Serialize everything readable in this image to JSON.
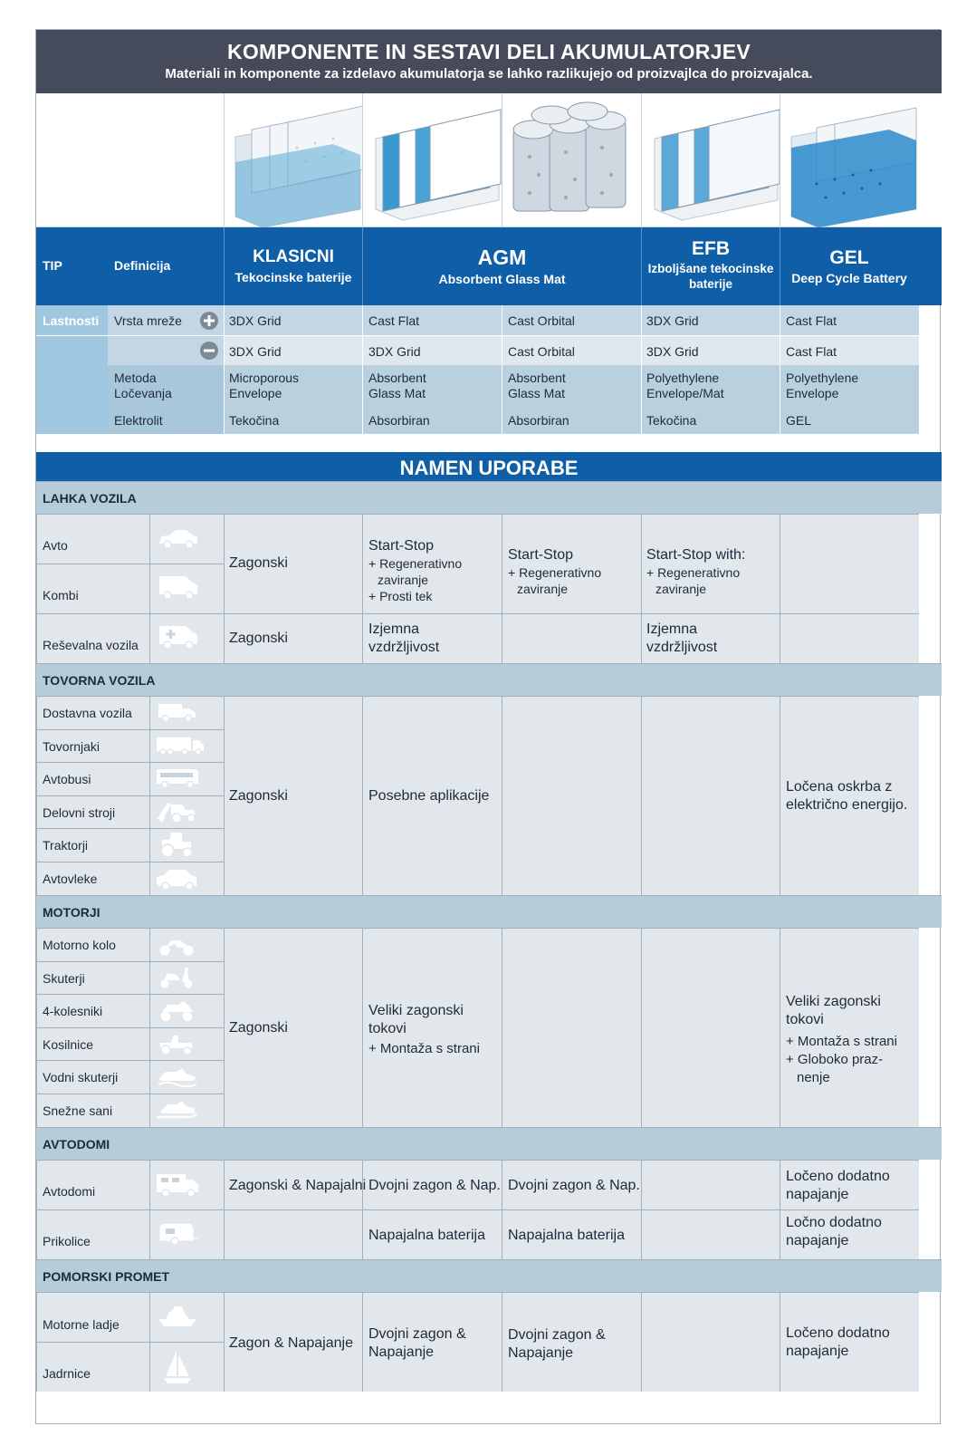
{
  "header": {
    "title": "KOMPONENTE IN SESTAVI DELI AKUMULATORJEV",
    "subtitle": "Materiali in komponente za izdelavo akumulatorja se lahko razlikujejo od proizvajlca do proizvajalca."
  },
  "types": {
    "tip": "TIP",
    "definicija": "Definicija",
    "klasicni": "KLASICNI",
    "klasicni_sub": "Tekocinske baterije",
    "agm": "AGM",
    "agm_sub": "Absorbent Glass Mat",
    "efb": "EFB",
    "efb_sub": "Izboljšane tekocinske baterije",
    "gel": "GEL",
    "gel_sub": "Deep Cycle Battery"
  },
  "props": {
    "lastnosti": "Lastnosti",
    "vrsta_mreze": "Vrsta mreže",
    "plus": [
      "3DX Grid",
      "Cast Flat",
      "Cast Orbital",
      "3DX Grid",
      "Cast Flat"
    ],
    "minus": [
      "3DX Grid",
      "3DX Grid",
      "Cast Orbital",
      "3DX Grid",
      "Cast Flat"
    ],
    "metoda": "Metoda Ločevanja",
    "metoda_vals": [
      "Microporous Envelope",
      "Absorbent Glass Mat",
      "Absorbent Glass Mat",
      "Polyethylene Envelope/Mat",
      "Polyethylene Envelope"
    ],
    "elektrolit": "Elektrolit",
    "elektrolit_vals": [
      "Tekočina",
      "Absorbiran",
      "Absorbiran",
      "Tekočina",
      "GEL"
    ]
  },
  "namen": "NAMEN UPORABE",
  "lahka": {
    "title": "LAHKA VOZILA",
    "rows": [
      "Avto",
      "Kombi",
      "Reševalna vozila"
    ],
    "zagonski": "Zagonski",
    "agm_flat_title": "Start-Stop",
    "agm_flat_l1": "+ Regenerativno",
    "agm_flat_l2": "zaviranje",
    "agm_flat_l3": "+ Prosti tek",
    "agm_orb_title": "Start-Stop",
    "agm_orb_l1": "+ Regenerativno",
    "agm_orb_l2": "zaviranje",
    "efb_title": "Start-Stop with:",
    "efb_l1": "+ Regenerativno",
    "efb_l2": "zaviranje",
    "res_zagonski": "Zagonski",
    "res_agm": "Izjemna vzdržljivost",
    "res_efb": "Izjemna vzdržljivost"
  },
  "tovorna": {
    "title": "TOVORNA VOZILA",
    "rows": [
      "Dostavna vozila",
      "Tovornjaki",
      "Avtobusi",
      "Delovni stroji",
      "Traktorji",
      "Avtovleke"
    ],
    "zagonski": "Zagonski",
    "agm": "Posebne aplikacije",
    "gel": "Ločena oskrba z električno energijo."
  },
  "motorji": {
    "title": "MOTORJI",
    "rows": [
      "Motorno kolo",
      "Skuterji",
      "4-kolesniki",
      "Kosilnice",
      "Vodni skuterji",
      "Snežne sani"
    ],
    "zagonski": "Zagonski",
    "agm_l1": "Veliki zagonski",
    "agm_l2": "tokovi",
    "agm_l3": "+ Montaža s strani",
    "gel_l1": "Veliki zagonski",
    "gel_l2": "tokovi",
    "gel_l3": "+ Montaža s strani",
    "gel_l4": "+ Globoko praz-",
    "gel_l5": "nenje"
  },
  "avtodomi": {
    "title": "AVTODOMI",
    "rows": [
      "Avtodomi",
      "Prikolice"
    ],
    "r1_klasicni": "Zagonski & Napajalni",
    "r1_agm1": "Dvojni zagon & Nap.",
    "r1_agm2": "Dvojni zagon & Nap.",
    "r1_gel": "Ločeno dodatno napajanje",
    "r2_agm1": "Napajalna baterija",
    "r2_agm2": "Napajalna baterija",
    "r2_gel": "Ločno dodatno napajanje"
  },
  "pomorski": {
    "title": "POMORSKI PROMET",
    "rows": [
      "Motorne ladje",
      "Jadrnice"
    ],
    "klasicni": "Zagon & Napajanje",
    "agm1": "Dvojni zagon & Napajanje",
    "agm2": "Dvojni zagon & Napajanje",
    "gel": "Ločeno dodatno napajanje"
  },
  "icons": {
    "plus": "plus-circle-icon",
    "minus": "minus-circle-icon",
    "vehicles": [
      "car-icon",
      "van-icon",
      "ambulance-icon",
      "delivery-truck-icon",
      "truck-icon",
      "bus-icon",
      "excavator-icon",
      "tractor-icon",
      "tow-truck-icon",
      "motorbike-icon",
      "scooter-icon",
      "quad-icon",
      "mower-icon",
      "jetski-icon",
      "snowmobile-icon",
      "camper-icon",
      "caravan-icon",
      "motorboat-icon",
      "sailboat-icon"
    ]
  },
  "colors": {
    "header_bg": "#464b5c",
    "blue": "#0f5ea8",
    "category_bg": "#b6ccda",
    "cell_bg": "#e2e7ec",
    "props_left": "#9fc8e0"
  }
}
